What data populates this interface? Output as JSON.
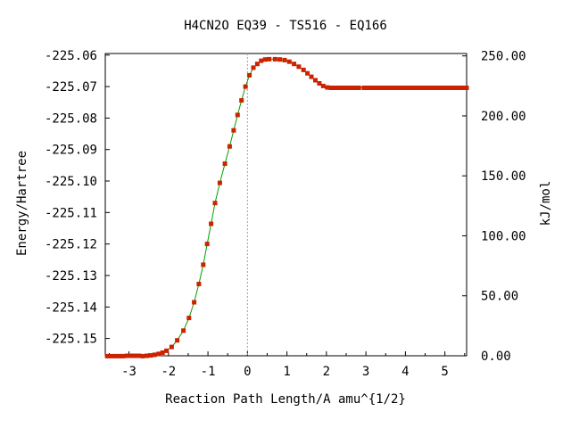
{
  "chart_data": {
    "type": "line",
    "title": "H4CN2O    EQ39 - TS516 - EQ166",
    "xlabel": "Reaction Path Length/A amu^{1/2}",
    "ylabel": "Energy/Hartree",
    "y2label": "kJ/mol",
    "xlim": [
      -3.6,
      5.55
    ],
    "ylim": [
      -225.1555,
      -225.0595
    ],
    "y2lim": [
      0,
      252
    ],
    "x_ticks": [
      -3,
      -2,
      -1,
      0,
      1,
      2,
      3,
      4,
      5
    ],
    "x_tick_labels": [
      "-3",
      "-2",
      "-1",
      "0",
      "1",
      "2",
      "3",
      "4",
      "5"
    ],
    "y_ticks": [
      -225.06,
      -225.07,
      -225.08,
      -225.09,
      -225.1,
      -225.11,
      -225.12,
      -225.13,
      -225.14,
      -225.15
    ],
    "y_tick_labels": [
      "-225.06",
      "-225.07",
      "-225.08",
      "-225.09",
      "-225.10",
      "-225.11",
      "-225.12",
      "-225.13",
      "-225.14",
      "-225.15"
    ],
    "y2_ticks": [
      0,
      50,
      100,
      150,
      200,
      250
    ],
    "y2_tick_labels": [
      "0.00",
      "50.00",
      "100.00",
      "150.00",
      "200.00",
      "250.00"
    ],
    "ts_marker_x": 0,
    "grid": false,
    "colors": {
      "line": "#00a000",
      "points": "#cc2200",
      "ts_marker": "#a0a0a0",
      "axes": "#000000"
    },
    "series": [
      {
        "x": [
          -3.55,
          -3.45,
          -3.35,
          -3.25,
          -3.15,
          -3.05,
          -2.95,
          -2.85,
          -2.75,
          -2.65,
          -2.55,
          -2.45,
          -2.35,
          -2.25,
          -2.15,
          -2.05,
          -1.92,
          -1.78,
          -1.62,
          -1.48,
          -1.35,
          -1.23,
          -1.12,
          -1.02,
          -0.92,
          -0.82,
          -0.7,
          -0.57,
          -0.45,
          -0.35,
          -0.25,
          -0.15,
          -0.05,
          0.05,
          0.15,
          0.25,
          0.35,
          0.45,
          0.55,
          0.7,
          0.82,
          0.94,
          1.06,
          1.18,
          1.3,
          1.42,
          1.52,
          1.62,
          1.72,
          1.82,
          1.92,
          2.02,
          2.12,
          2.22,
          2.32,
          2.42,
          2.52,
          2.62,
          2.72,
          2.82,
          2.95,
          3.05,
          3.15,
          3.25,
          3.35,
          3.45,
          3.55,
          3.65,
          3.75,
          3.85,
          3.95,
          4.05,
          4.15,
          4.25,
          4.35,
          4.45,
          4.55,
          4.65,
          4.75,
          4.85,
          4.95,
          5.05,
          5.15,
          5.25,
          5.35,
          5.45,
          5.55
        ],
        "y": [
          -225.1556,
          -225.1556,
          -225.1556,
          -225.1556,
          -225.1556,
          -225.1555,
          -225.1555,
          -225.1555,
          -225.1555,
          -225.1556,
          -225.1555,
          -225.1554,
          -225.1552,
          -225.1549,
          -225.1545,
          -225.1539,
          -225.1527,
          -225.1506,
          -225.1475,
          -225.1435,
          -225.1385,
          -225.1327,
          -225.1266,
          -225.12,
          -225.1136,
          -225.107,
          -225.1006,
          -225.0945,
          -225.089,
          -225.0839,
          -225.079,
          -225.0744,
          -225.07,
          -225.0664,
          -225.064,
          -225.0628,
          -225.0618,
          -225.0614,
          -225.0613,
          -225.0613,
          -225.0614,
          -225.0616,
          -225.0621,
          -225.0628,
          -225.0637,
          -225.0647,
          -225.0658,
          -225.0669,
          -225.068,
          -225.069,
          -225.0698,
          -225.0703,
          -225.0704,
          -225.0704,
          -225.0704,
          -225.0704,
          -225.0704,
          -225.0704,
          -225.0704,
          -225.0704,
          -225.0704,
          -225.0704,
          -225.0704,
          -225.0704,
          -225.0704,
          -225.0704,
          -225.0704,
          -225.0704,
          -225.0704,
          -225.0704,
          -225.0704,
          -225.0704,
          -225.0704,
          -225.0704,
          -225.0704,
          -225.0704,
          -225.0704,
          -225.0704,
          -225.0704,
          -225.0704,
          -225.0704,
          -225.0704,
          -225.0704,
          -225.0704,
          -225.0704,
          -225.0704,
          -225.0704
        ]
      }
    ]
  }
}
